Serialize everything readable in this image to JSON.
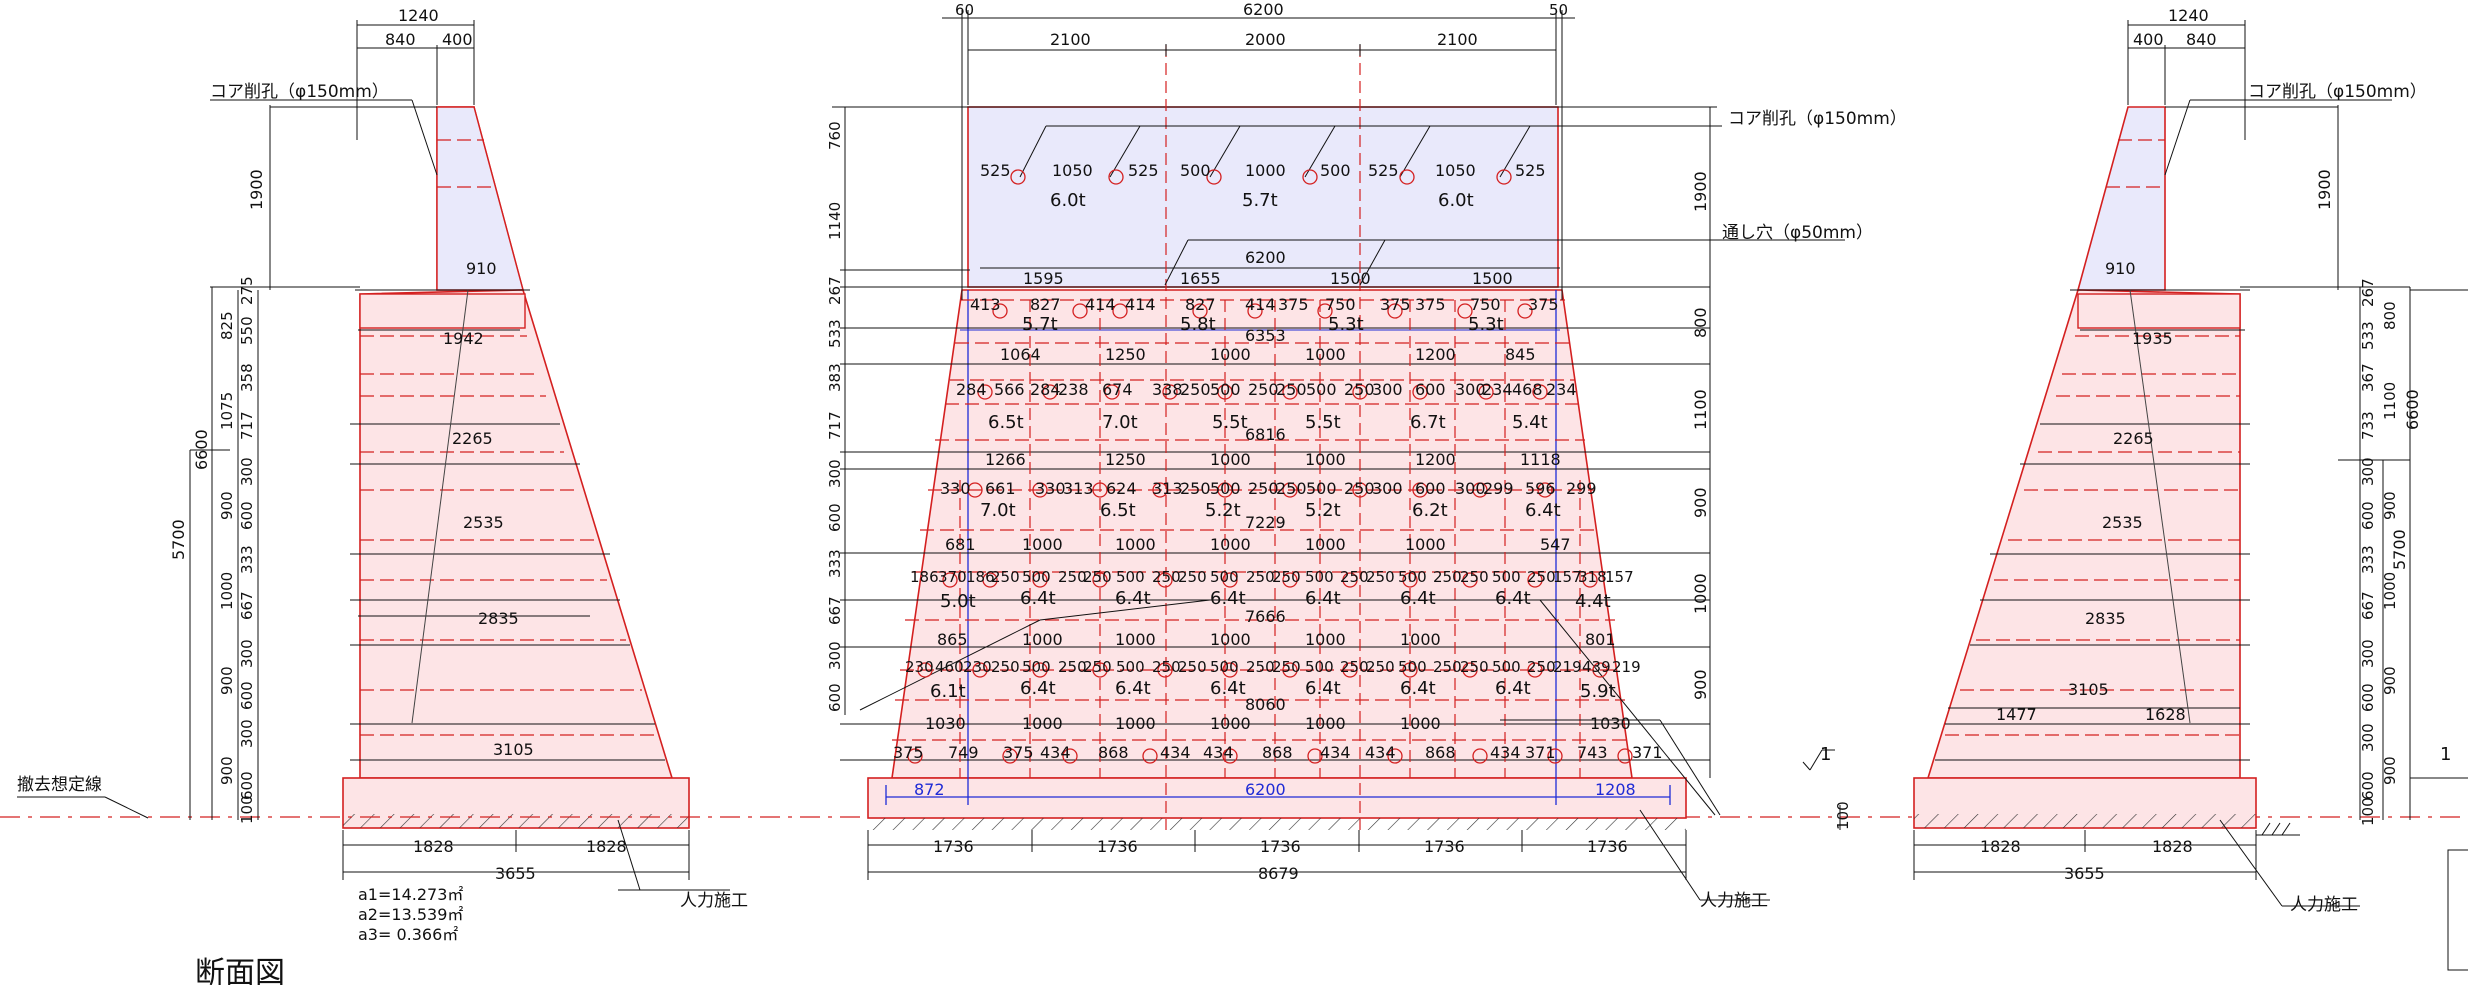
{
  "title": "断面図",
  "leaders": {
    "core_left": "コア削孔（φ150mm）",
    "core_mid": "コア削孔（φ150mm）",
    "core_right": "コア削孔（φ150mm）",
    "vent": "通し穴（φ50mm）",
    "removal": "撤去想定線",
    "manual_left": "人力施工",
    "manual_mid": "人力施工",
    "manual_right": "人力施工"
  },
  "slope": "1",
  "areas": [
    "a1=14.273㎡",
    "a2=13.539㎡",
    "a3= 0.366㎡"
  ],
  "left_section": {
    "top_dims": [
      "1240",
      "840",
      "400"
    ],
    "vertical_dims": [
      "1900",
      "6600",
      "5700",
      "825",
      "550",
      "275",
      "1075",
      "358",
      "717",
      "900",
      "300",
      "600",
      "1000",
      "333",
      "667",
      "900",
      "300",
      "600",
      "900",
      "300",
      "600",
      "100"
    ],
    "widths": [
      "910",
      "1942",
      "2265",
      "2535",
      "2835",
      "3105"
    ],
    "bottom_dims": [
      "1828",
      "1828",
      "3655"
    ]
  },
  "right_section": {
    "top_dims": [
      "1240",
      "400",
      "840"
    ],
    "vertical_dims": [
      "1900",
      "267",
      "533",
      "800",
      "367",
      "733",
      "1100",
      "6600",
      "5700",
      "300",
      "600",
      "900",
      "333",
      "667",
      "1000",
      "300",
      "600",
      "900",
      "300",
      "600",
      "900",
      "100"
    ],
    "widths": [
      "910",
      "1935",
      "2265",
      "2535",
      "2835",
      "3105",
      "1477",
      "1628"
    ],
    "bottom_dims": [
      "1828",
      "1828",
      "3655"
    ]
  },
  "front_elevation": {
    "top_dims": [
      "60",
      "6200",
      "50",
      "2100",
      "2000",
      "2100"
    ],
    "left_dims": [
      "760",
      "1140",
      "267",
      "533",
      "383",
      "717",
      "300",
      "600",
      "333",
      "667",
      "300",
      "600"
    ],
    "right_dims": [
      "1900",
      "800",
      "1100",
      "900",
      "1000",
      "900"
    ],
    "rows": [
      {
        "segments": [
          "525",
          "1050",
          "525",
          "500",
          "1000",
          "500",
          "525",
          "1050",
          "525"
        ],
        "weights": [
          "6.0t",
          "5.7t",
          "6.0t"
        ]
      },
      {
        "segments": [
          "1595",
          "1655",
          "1500",
          "1500"
        ],
        "width": "6200"
      },
      {
        "segments": [
          "413",
          "827",
          "414",
          "414",
          "827",
          "414",
          "375",
          "750",
          "375",
          "375",
          "750",
          "375"
        ],
        "weights": [
          "5.7t",
          "5.8t",
          "5.3t",
          "5.3t"
        ]
      },
      {
        "width": "6353",
        "segments": [
          "1064",
          "1250",
          "1000",
          "1000",
          "1200",
          "845"
        ]
      },
      {
        "segments": [
          "284",
          "566",
          "284",
          "238",
          "674",
          "338",
          "250",
          "500",
          "250",
          "250",
          "500",
          "250",
          "300",
          "600",
          "300",
          "234",
          "468",
          "234"
        ],
        "weights": [
          "6.5t",
          "7.0t",
          "5.5t",
          "5.5t",
          "6.7t",
          "5.4t"
        ]
      },
      {
        "width": "6816",
        "segments": [
          "1266",
          "1250",
          "1000",
          "1000",
          "1200",
          "1118"
        ]
      },
      {
        "segments": [
          "330",
          "661",
          "330",
          "313",
          "624",
          "313",
          "250",
          "500",
          "250",
          "250",
          "500",
          "250",
          "300",
          "600",
          "300",
          "299",
          "596",
          "299"
        ],
        "weights": [
          "7.0t",
          "6.5t",
          "5.2t",
          "5.2t",
          "6.2t",
          "6.4t"
        ]
      },
      {
        "width": "7229",
        "segments": [
          "681",
          "1000",
          "1000",
          "1000",
          "1000",
          "1000",
          "547"
        ]
      },
      {
        "segments": [
          "186",
          "370",
          "186",
          "250",
          "500",
          "250",
          "250",
          "500",
          "250",
          "250",
          "500",
          "250",
          "250",
          "500",
          "250",
          "250",
          "500",
          "250",
          "250",
          "500",
          "250",
          "157",
          "318",
          "157"
        ],
        "weights": [
          "5.0t",
          "6.4t",
          "6.4t",
          "6.4t",
          "6.4t",
          "6.4t",
          "6.4t",
          "4.4t"
        ]
      },
      {
        "width": "7666",
        "segments": [
          "865",
          "1000",
          "1000",
          "1000",
          "1000",
          "1000",
          "801"
        ]
      },
      {
        "segments": [
          "230",
          "460",
          "230",
          "250",
          "500",
          "250",
          "250",
          "500",
          "250",
          "250",
          "500",
          "250",
          "250",
          "500",
          "250",
          "250",
          "500",
          "250",
          "250",
          "500",
          "250",
          "219",
          "439",
          "219"
        ],
        "weights": [
          "6.1t",
          "6.4t",
          "6.4t",
          "6.4t",
          "6.4t",
          "6.4t",
          "6.4t",
          "5.9t"
        ]
      },
      {
        "width": "8060",
        "segments": [
          "1030",
          "1000",
          "1000",
          "1000",
          "1000",
          "1000",
          "1030"
        ]
      },
      {
        "segments": [
          "375",
          "749",
          "375",
          "434",
          "868",
          "434",
          "434",
          "868",
          "434",
          "434",
          "868",
          "434",
          "371",
          "743",
          "371"
        ]
      }
    ],
    "base_blue": [
      "872",
      "6200",
      "1208"
    ],
    "base_dims": [
      "1736",
      "1736",
      "1736",
      "1736",
      "1736",
      "8679"
    ],
    "right_small": [
      "100"
    ]
  }
}
